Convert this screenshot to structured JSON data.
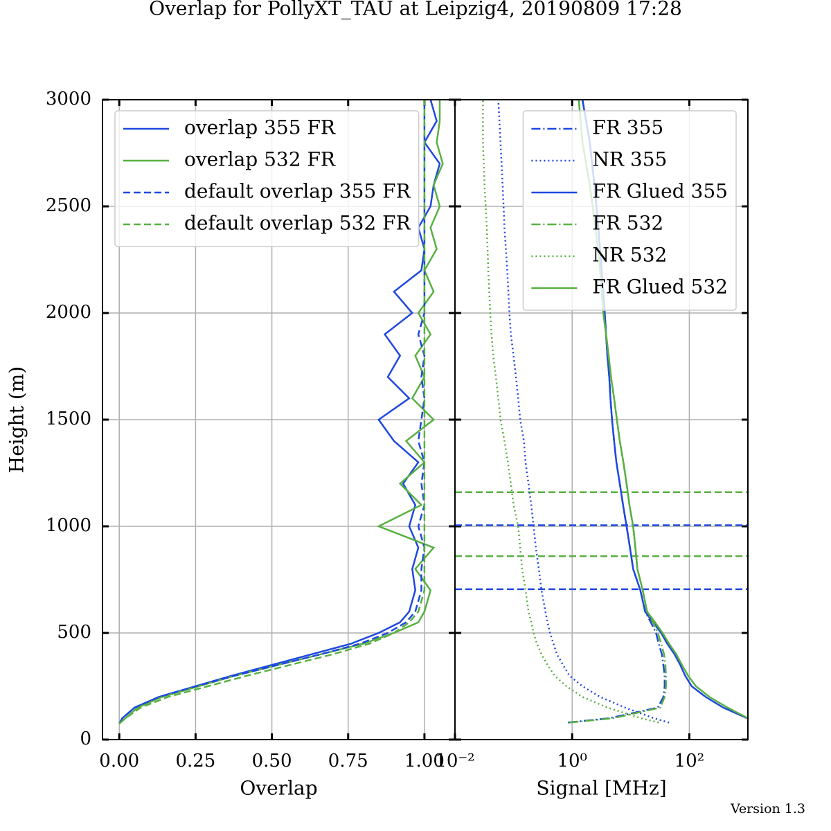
{
  "figure": {
    "title": "Overlap for PollyXT_TAU at Leipzig4, 20190809 17:28",
    "footer": "Version 1.3"
  },
  "chart_data": [
    {
      "type": "profile",
      "xlabel": "Overlap",
      "ylabel": "Height (m)",
      "xscale": "linear",
      "xlim": [
        -0.055,
        1.1
      ],
      "ylim": [
        0,
        3000
      ],
      "xticks": [
        {
          "value": 0,
          "label": "0.00"
        },
        {
          "value": 0.25,
          "label": "0.25"
        },
        {
          "value": 0.5,
          "label": "0.50"
        },
        {
          "value": 0.75,
          "label": "0.75"
        },
        {
          "value": 1,
          "label": "1.00"
        }
      ],
      "yticks": [
        0,
        500,
        1000,
        1500,
        2000,
        2500,
        3000
      ],
      "grid": true,
      "legend": "upper left",
      "heights": [
        75,
        100,
        150,
        200,
        250,
        300,
        350,
        400,
        450,
        500,
        550,
        600,
        700,
        800,
        900,
        1000,
        1100,
        1200,
        1300,
        1400,
        1500,
        1600,
        1700,
        1800,
        1900,
        2000,
        2100,
        2200,
        2300,
        2400,
        2500,
        2600,
        2700,
        2800,
        2900,
        3000
      ],
      "series": [
        {
          "name": "overlap 355 FR",
          "color": "#1f48e0",
          "linestyle": "solid",
          "values": [
            0,
            0.01,
            0.05,
            0.13,
            0.25,
            0.37,
            0.5,
            0.63,
            0.76,
            0.85,
            0.92,
            0.95,
            0.97,
            0.96,
            0.98,
            0.95,
            0.97,
            0.93,
            0.98,
            0.9,
            0.85,
            0.95,
            0.88,
            0.92,
            0.87,
            0.96,
            0.9,
            0.99,
            1.0,
            0.98,
            1.02,
            1.03,
            1.05,
            1.0,
            1.04,
            1.02
          ]
        },
        {
          "name": "overlap 532 FR",
          "color": "#58b041",
          "linestyle": "solid",
          "values": [
            0,
            0.02,
            0.06,
            0.14,
            0.26,
            0.38,
            0.52,
            0.66,
            0.8,
            0.9,
            0.98,
            1.0,
            1.02,
            0.97,
            1.03,
            0.85,
            0.99,
            0.92,
            1.0,
            0.94,
            1.03,
            0.96,
            1.0,
            0.97,
            1.02,
            0.98,
            1.03,
            1.0,
            1.04,
            1.02,
            1.05,
            1.03,
            1.06,
            1.04,
            1.05,
            1.05
          ]
        },
        {
          "name": "default overlap 355 FR",
          "color": "#1f48e0",
          "linestyle": "dashed",
          "values": [
            0,
            0.01,
            0.05,
            0.13,
            0.25,
            0.38,
            0.52,
            0.66,
            0.79,
            0.88,
            0.94,
            0.97,
            0.99,
            0.99,
            1.0,
            0.98,
            1.0,
            0.99,
            1.0,
            0.98,
            0.99,
            1.0,
            0.99,
            1.0,
            0.98,
            1.0,
            1.0,
            1.0,
            1.0,
            1.0,
            1.0,
            1.0,
            1.0,
            1.0,
            1.0,
            1.0
          ]
        },
        {
          "name": "default overlap 532 FR",
          "color": "#58b041",
          "linestyle": "dashed",
          "values": [
            0,
            0.02,
            0.07,
            0.16,
            0.29,
            0.42,
            0.56,
            0.7,
            0.82,
            0.9,
            0.95,
            0.98,
            1.0,
            1.0,
            1.0,
            1.0,
            1.0,
            1.0,
            1.0,
            1.0,
            1.0,
            1.0,
            1.0,
            1.0,
            1.0,
            1.0,
            1.0,
            1.0,
            1.0,
            1.0,
            1.0,
            1.0,
            1.0,
            1.0,
            1.0,
            1.0
          ]
        }
      ]
    },
    {
      "type": "profile",
      "xlabel": "Signal [MHz]",
      "xscale": "log",
      "xlim": [
        0.01,
        1000
      ],
      "ylim": [
        0,
        3000
      ],
      "xticks": [
        {
          "value": 0.01,
          "label": "10⁻²"
        },
        {
          "value": 1,
          "label": "10⁰"
        },
        {
          "value": 100,
          "label": "10²"
        }
      ],
      "yticks": [
        0,
        500,
        1000,
        1500,
        2000,
        2500,
        3000
      ],
      "grid": true,
      "legend": "upper right",
      "heights": [
        80,
        100,
        150,
        200,
        250,
        300,
        350,
        400,
        450,
        500,
        550,
        600,
        700,
        800,
        900,
        1000,
        1100,
        1200,
        1300,
        1400,
        1500,
        1600,
        1700,
        1800,
        1900,
        2000,
        2200,
        2400,
        2600,
        2800,
        3000
      ],
      "series": [
        {
          "name": "FR 355",
          "color": "#1f48e0",
          "linestyle": "dashdot",
          "values": [
            0.85,
            4.3,
            29,
            36,
            38,
            38,
            36,
            34,
            30,
            27,
            22,
            17.6,
            14.6,
            11,
            9.7,
            8.5,
            7.4,
            6.5,
            5.7,
            5.2,
            4.8,
            4.5,
            4.3,
            4.0,
            3.8,
            3.6,
            3.2,
            2.8,
            2.4,
            2.0,
            1.5
          ]
        },
        {
          "name": "NR 355",
          "color": "#1f48e0",
          "linestyle": "dotted",
          "values": [
            45,
            25,
            8,
            3,
            1.5,
            0.9,
            0.7,
            0.55,
            0.48,
            0.42,
            0.38,
            0.35,
            0.3,
            0.27,
            0.24,
            0.22,
            0.2,
            0.18,
            0.16,
            0.15,
            0.13,
            0.12,
            0.11,
            0.1,
            0.09,
            0.085,
            0.078,
            0.07,
            0.065,
            0.06,
            0.055
          ]
        },
        {
          "name": "FR Glued 355",
          "color": "#1f48e0",
          "linestyle": "solid",
          "values": [
            null,
            975,
            380,
            190,
            110,
            85,
            70,
            56,
            42,
            33,
            24,
            17.6,
            14.6,
            11,
            9.7,
            8.5,
            7.4,
            6.5,
            5.7,
            5.2,
            4.8,
            4.5,
            4.3,
            4.0,
            3.8,
            3.6,
            3.2,
            2.8,
            2.4,
            2.0,
            1.5
          ]
        },
        {
          "name": "FR 532",
          "color": "#58b041",
          "linestyle": "dashdot",
          "values": [
            0.9,
            5,
            32,
            38,
            40,
            40,
            39,
            37,
            33,
            29,
            24,
            19,
            16,
            13,
            12,
            11,
            9.5,
            8.5,
            7.5,
            6.5,
            5.8,
            5.2,
            4.6,
            4.2,
            3.8,
            3.4,
            3.0,
            2.5,
            2.0,
            1.5,
            1.3
          ]
        },
        {
          "name": "NR 532",
          "color": "#58b041",
          "linestyle": "dotted",
          "values": [
            30,
            15,
            4,
            1.5,
            0.8,
            0.5,
            0.38,
            0.3,
            0.25,
            0.22,
            0.2,
            0.18,
            0.16,
            0.14,
            0.13,
            0.12,
            0.1,
            0.09,
            0.08,
            0.07,
            0.06,
            0.055,
            0.05,
            0.045,
            0.042,
            0.04,
            0.037,
            0.035,
            0.032,
            0.03,
            0.03
          ]
        },
        {
          "name": "FR Glued 532",
          "color": "#58b041",
          "linestyle": "solid",
          "values": [
            null,
            1000,
            450,
            220,
            130,
            95,
            75,
            60,
            45,
            35,
            26,
            19,
            16,
            13,
            12,
            11,
            9.5,
            8.5,
            7.5,
            6.5,
            5.8,
            5.2,
            4.6,
            4.2,
            3.8,
            3.4,
            3.0,
            2.5,
            2.0,
            1.5,
            1.3
          ]
        }
      ],
      "reference_lines": [
        {
          "value": 1160,
          "color": "#58b041"
        },
        {
          "value": 1005,
          "color": "#1f48e0"
        },
        {
          "value": 860,
          "color": "#58b041"
        },
        {
          "value": 705,
          "color": "#1f48e0"
        }
      ]
    }
  ]
}
